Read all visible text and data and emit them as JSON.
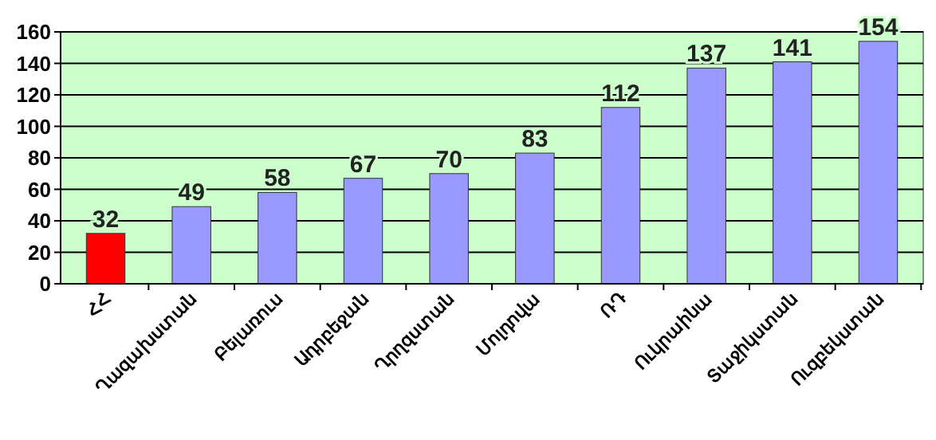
{
  "chart_data": {
    "type": "bar",
    "categories": [
      "ՀՀ",
      "Ղազախստան",
      "Բելառուս",
      "Ադրբեջան",
      "Ղրղզստան",
      "Մոլդովա",
      "ՌԴ",
      "Ուկրաինա",
      "Տաջիկստան",
      "Ուզբեկստան"
    ],
    "values": [
      32,
      49,
      58,
      67,
      70,
      83,
      112,
      137,
      141,
      154
    ],
    "colors": [
      "#ff0000",
      "#9999ff",
      "#9999ff",
      "#9999ff",
      "#9999ff",
      "#9999ff",
      "#9999ff",
      "#9999ff",
      "#9999ff",
      "#9999ff"
    ],
    "ylim": [
      0,
      160
    ],
    "yticks": [
      0,
      20,
      40,
      60,
      80,
      100,
      120,
      140,
      160
    ],
    "grid": "y",
    "data_labels": true
  }
}
